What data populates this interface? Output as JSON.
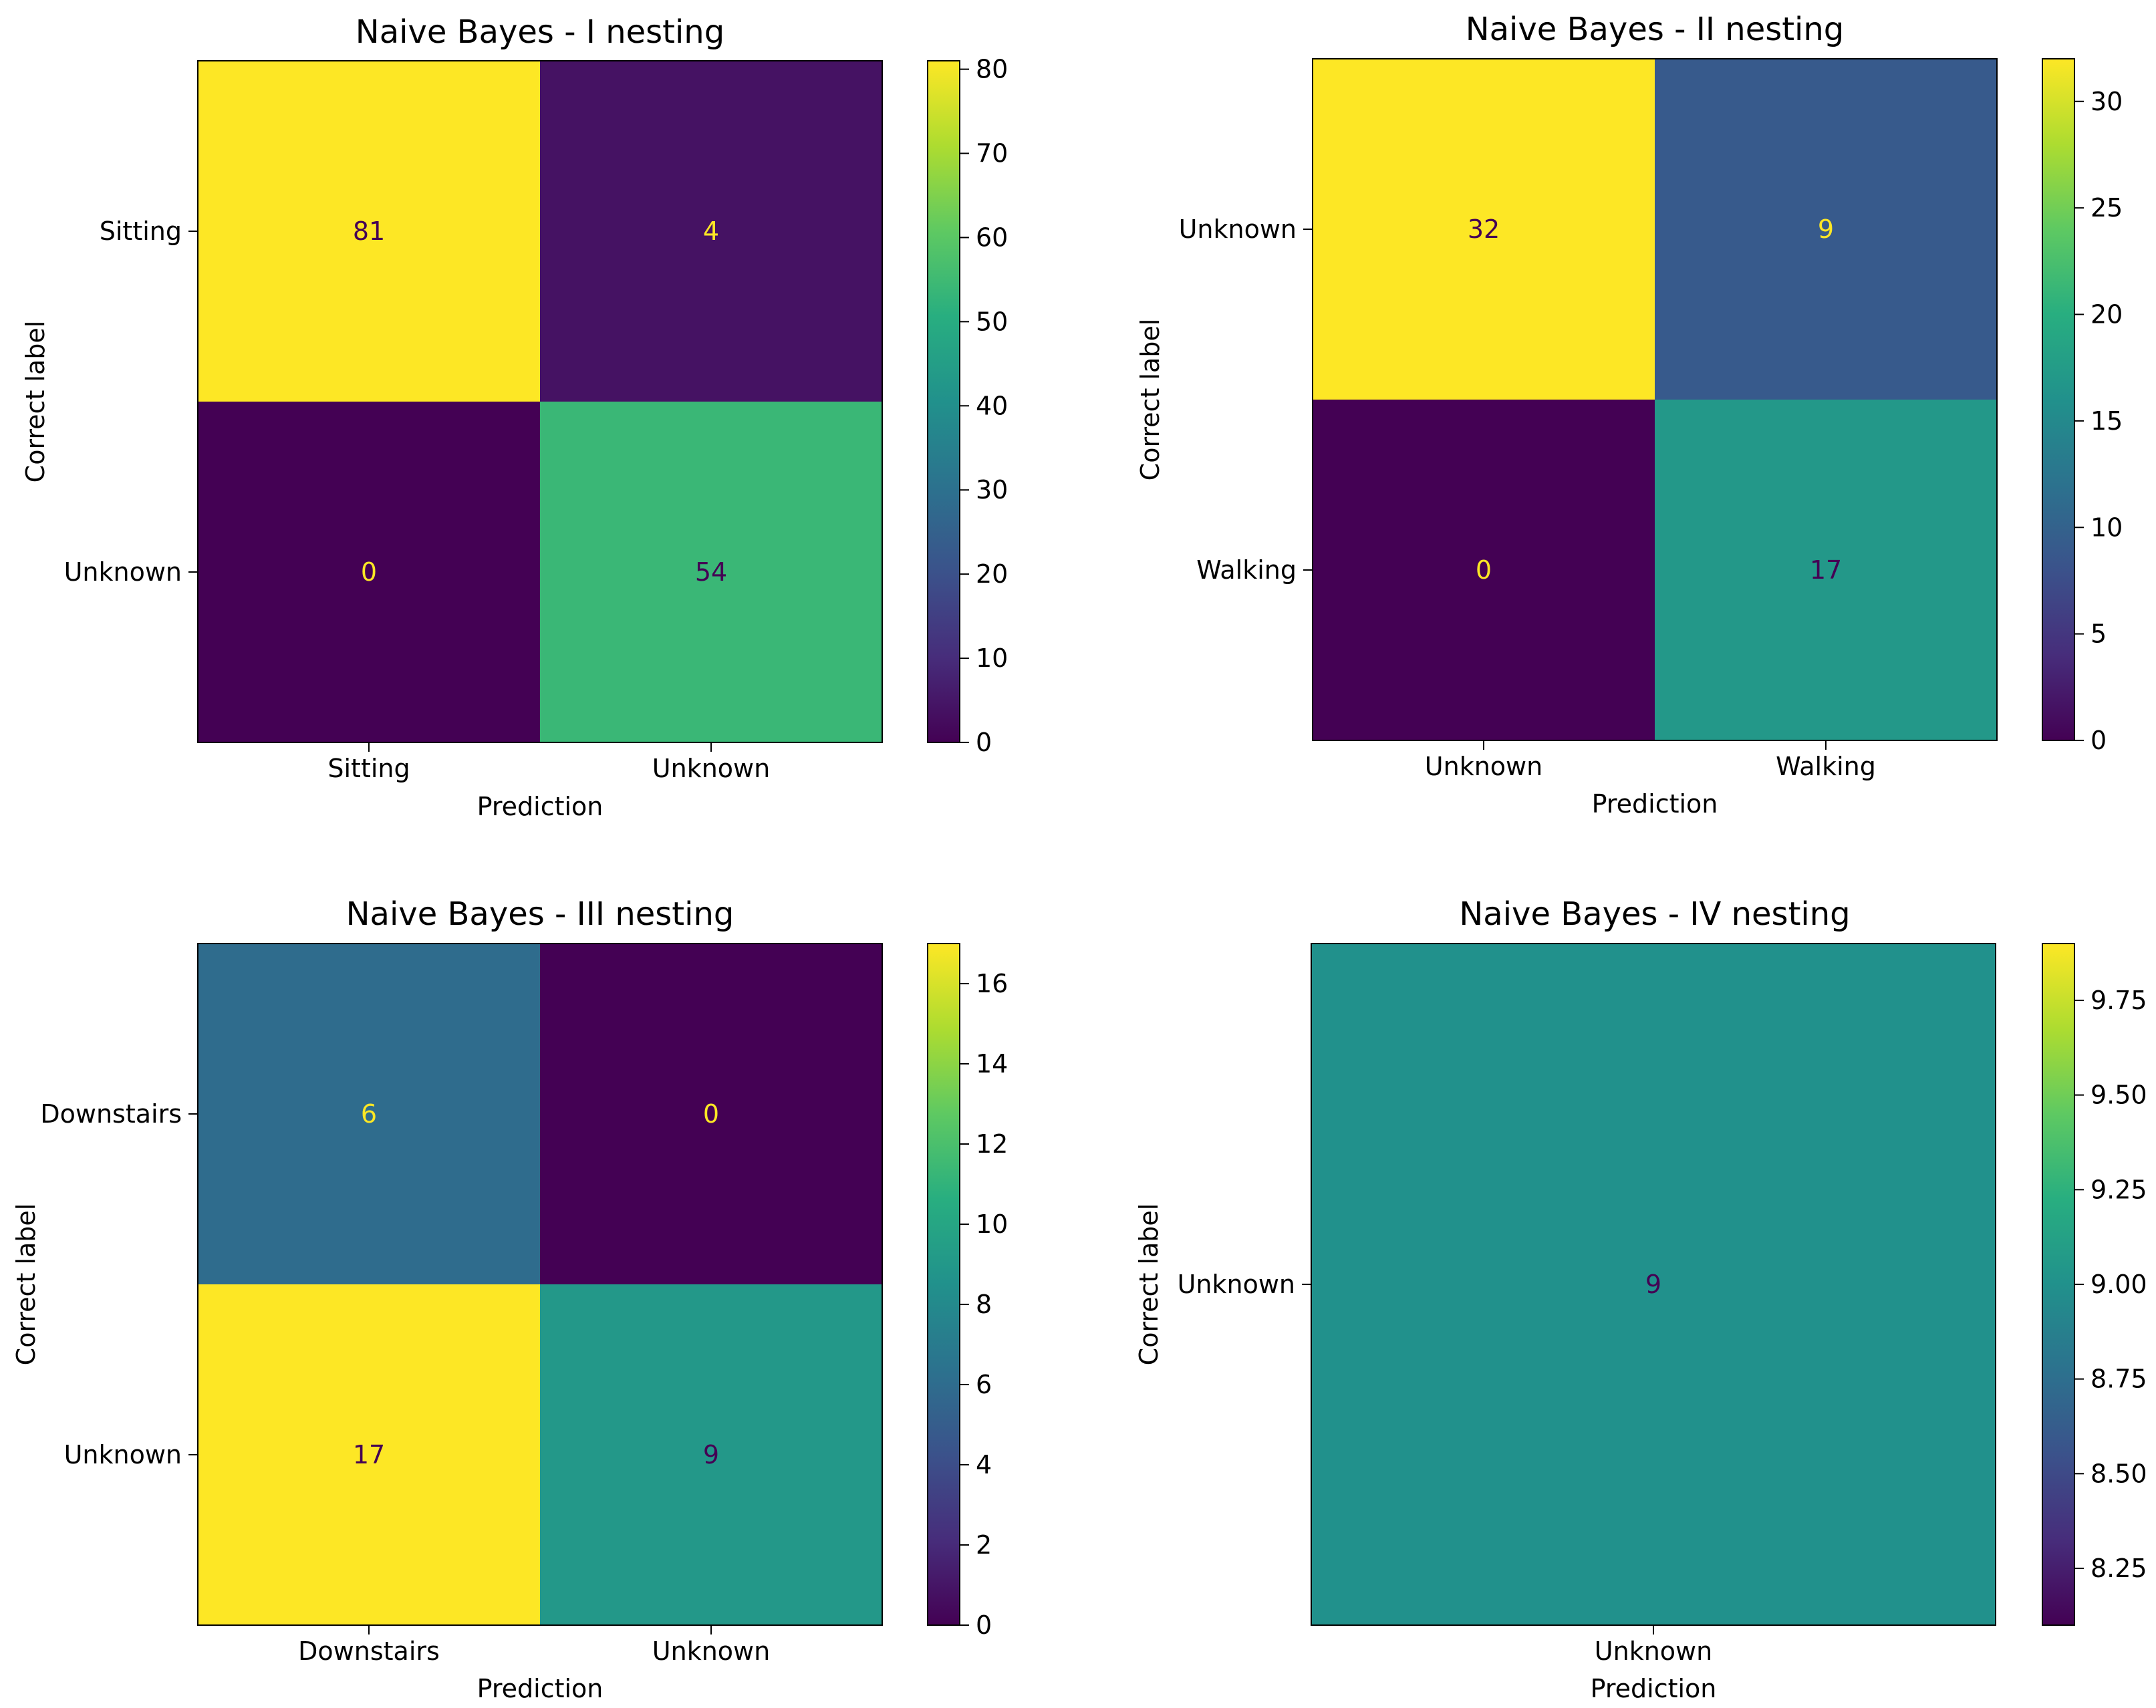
{
  "chart_data": [
    {
      "type": "heatmap",
      "title": "Naive Bayes - I nesting",
      "xlabel": "Prediction",
      "ylabel": "Correct label",
      "x_categories": [
        "Sitting",
        "Unknown"
      ],
      "y_categories": [
        "Sitting",
        "Unknown"
      ],
      "values": [
        [
          81,
          4
        ],
        [
          0,
          54
        ]
      ],
      "colorbar": {
        "min": 0,
        "max": 81,
        "cmap": "viridis",
        "ticks": [
          {
            "value": 0,
            "label": "0"
          },
          {
            "value": 10,
            "label": "10"
          },
          {
            "value": 20,
            "label": "20"
          },
          {
            "value": 30,
            "label": "30"
          },
          {
            "value": 40,
            "label": "40"
          },
          {
            "value": 50,
            "label": "50"
          },
          {
            "value": 60,
            "label": "60"
          },
          {
            "value": 70,
            "label": "70"
          },
          {
            "value": 80,
            "label": "80"
          }
        ]
      }
    },
    {
      "type": "heatmap",
      "title": "Naive Bayes - II nesting",
      "xlabel": "Prediction",
      "ylabel": "Correct label",
      "x_categories": [
        "Unknown",
        "Walking"
      ],
      "y_categories": [
        "Unknown",
        "Walking"
      ],
      "values": [
        [
          32,
          9
        ],
        [
          0,
          17
        ]
      ],
      "colorbar": {
        "min": 0,
        "max": 32,
        "cmap": "viridis",
        "ticks": [
          {
            "value": 0,
            "label": "0"
          },
          {
            "value": 5,
            "label": "5"
          },
          {
            "value": 10,
            "label": "10"
          },
          {
            "value": 15,
            "label": "15"
          },
          {
            "value": 20,
            "label": "20"
          },
          {
            "value": 25,
            "label": "25"
          },
          {
            "value": 30,
            "label": "30"
          }
        ]
      }
    },
    {
      "type": "heatmap",
      "title": "Naive Bayes - III nesting",
      "xlabel": "Prediction",
      "ylabel": "Correct label",
      "x_categories": [
        "Downstairs",
        "Unknown"
      ],
      "y_categories": [
        "Downstairs",
        "Unknown"
      ],
      "values": [
        [
          6,
          0
        ],
        [
          17,
          9
        ]
      ],
      "colorbar": {
        "min": 0,
        "max": 17,
        "cmap": "viridis",
        "ticks": [
          {
            "value": 0,
            "label": "0"
          },
          {
            "value": 2,
            "label": "2"
          },
          {
            "value": 4,
            "label": "4"
          },
          {
            "value": 6,
            "label": "6"
          },
          {
            "value": 8,
            "label": "8"
          },
          {
            "value": 10,
            "label": "10"
          },
          {
            "value": 12,
            "label": "12"
          },
          {
            "value": 14,
            "label": "14"
          },
          {
            "value": 16,
            "label": "16"
          }
        ]
      }
    },
    {
      "type": "heatmap",
      "title": "Naive Bayes - IV nesting",
      "xlabel": "Prediction",
      "ylabel": "Correct label",
      "x_categories": [
        "Unknown"
      ],
      "y_categories": [
        "Unknown"
      ],
      "values": [
        [
          9
        ]
      ],
      "colorbar": {
        "min": 8.1,
        "max": 9.9,
        "cmap": "viridis",
        "ticks": [
          {
            "value": 8.25,
            "label": "8.25"
          },
          {
            "value": 8.5,
            "label": "8.50"
          },
          {
            "value": 8.75,
            "label": "8.75"
          },
          {
            "value": 9.0,
            "label": "9.00"
          },
          {
            "value": 9.25,
            "label": "9.25"
          },
          {
            "value": 9.5,
            "label": "9.50"
          },
          {
            "value": 9.75,
            "label": "9.75"
          }
        ]
      }
    }
  ]
}
